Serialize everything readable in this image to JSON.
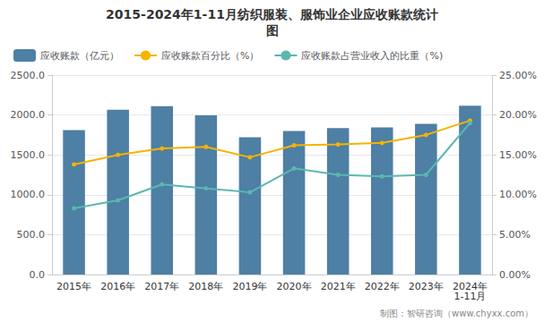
{
  "chart_data": {
    "type": "bar",
    "title": "2015-2024年1-11月纺织服装、服饰业企业应收账款统计",
    "subtitle": "图",
    "categories": [
      "2015年",
      "2016年",
      "2017年",
      "2018年",
      "2019年",
      "2020年",
      "2021年",
      "2022年",
      "2023年",
      "2024年"
    ],
    "series": [
      {
        "name": "应收账款（亿元）",
        "type": "bar",
        "color": "#4e7fa4",
        "values": [
          1810,
          2065,
          2110,
          1995,
          1720,
          1800,
          1835,
          1845,
          1890,
          2115
        ]
      },
      {
        "name": "应收账款百分比（%）",
        "type": "line",
        "axis": "y2",
        "color": "#f5b400",
        "marker": "circle",
        "values": [
          13.8,
          15.0,
          15.8,
          16.0,
          14.7,
          16.2,
          16.3,
          16.5,
          17.5,
          19.3
        ]
      },
      {
        "name": "应收账款占营业收入的比重（%)",
        "type": "line",
        "axis": "y2",
        "color": "#5ab8b0",
        "marker": "circle",
        "values": [
          8.3,
          9.3,
          11.3,
          10.8,
          10.3,
          13.3,
          12.5,
          12.3,
          12.5,
          19.0
        ]
      }
    ],
    "ylim": [
      0,
      2500
    ],
    "yticks": [
      {
        "value": 0,
        "label": "0.0"
      },
      {
        "value": 500,
        "label": "500.0"
      },
      {
        "value": 1000,
        "label": "1000.0"
      },
      {
        "value": 1500,
        "label": "1500.0"
      },
      {
        "value": 2000,
        "label": "2000.0"
      },
      {
        "value": 2500,
        "label": "2500.0"
      }
    ],
    "y2lim": [
      0,
      25
    ],
    "y2ticks": [
      {
        "value": 0,
        "label": "0.00%"
      },
      {
        "value": 5,
        "label": "5.00%"
      },
      {
        "value": 10,
        "label": "10.00%"
      },
      {
        "value": 15,
        "label": "15.00%"
      },
      {
        "value": 20,
        "label": "20.00%"
      },
      {
        "value": 25,
        "label": "25.00%"
      }
    ],
    "annotations": [
      {
        "text": "1-11月",
        "category": "2024年"
      },
      {
        "text": "制图：智研咨询（www.chyxx.com）"
      }
    ],
    "legend": "upper left",
    "grid": true
  }
}
